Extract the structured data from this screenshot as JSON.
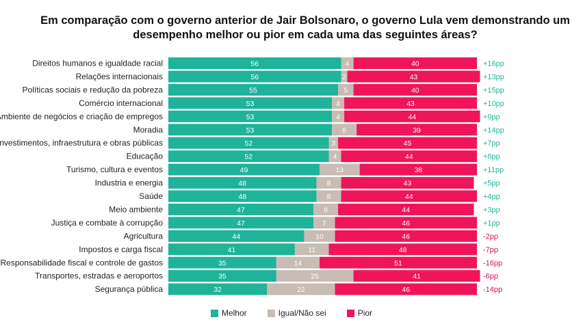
{
  "chart_data": {
    "type": "bar",
    "stacked": true,
    "orientation": "horizontal",
    "title": "Em comparação com o governo anterior de Jair Bolsonaro, o governo Lula vem demonstrando um desempenho melhor ou pior em cada uma das seguintes áreas?",
    "legend_position": "bottom",
    "colors": {
      "Melhor": "#1fb39a",
      "Igual/Não sei": "#c8bcb4",
      "Pior": "#f0145a",
      "diff_positive": "#1fb39a",
      "diff_negative": "#d11452"
    },
    "categories": [
      "Direitos humanos e igualdade racial",
      "Relações internacionais",
      "Políticas sociais e redução da pobreza",
      "Comércio internacional",
      "Ambiente de negócios e criação de empregos",
      "Moradia",
      "Investimentos, infraestrutura e obras públicas",
      "Educação",
      "Turismo, cultura e eventos",
      "Industria e energia",
      "Saúde",
      "Meio ambiente",
      "Justiça e combate à corrupção",
      "Agricultura",
      "Impostos e carga fiscal",
      "Responsabilidade fiscal e controle de gastos",
      "Transportes, estradas e aeroportos",
      "Segurança pública"
    ],
    "series": [
      {
        "name": "Melhor",
        "values": [
          56,
          56,
          55,
          53,
          53,
          53,
          52,
          52,
          49,
          48,
          48,
          47,
          47,
          44,
          41,
          35,
          35,
          32
        ]
      },
      {
        "name": "Igual/Não sei",
        "values": [
          4,
          2,
          5,
          4,
          4,
          8,
          3,
          4,
          13,
          8,
          8,
          8,
          7,
          10,
          11,
          14,
          25,
          22
        ]
      },
      {
        "name": "Pior",
        "values": [
          40,
          43,
          40,
          43,
          44,
          39,
          45,
          44,
          38,
          43,
          44,
          44,
          46,
          46,
          48,
          51,
          41,
          46
        ]
      }
    ],
    "differences": [
      "+16pp",
      "+13pp",
      "+15pp",
      "+10pp",
      "+9pp",
      "+14pp",
      "+7pp",
      "+8pp",
      "+11pp",
      "+5pp",
      "+4pp",
      "+3pp",
      "+1pp",
      "-2pp",
      "-7pp",
      "-16pp",
      "-6pp",
      "-14pp"
    ]
  }
}
